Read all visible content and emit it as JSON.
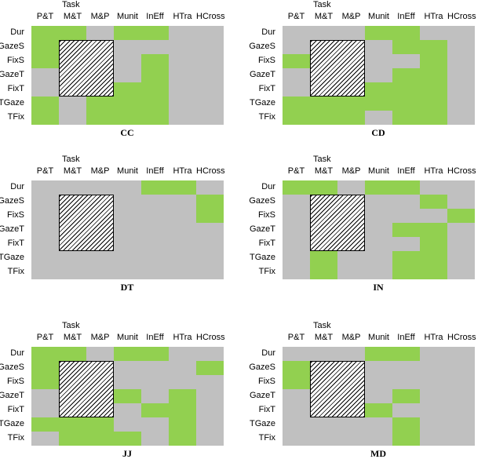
{
  "colors": {
    "on": "#92d050",
    "off": "#c0c0c0"
  },
  "axis_title": "Task",
  "columns": [
    "P&T",
    "M&T",
    "M&P",
    "Munit",
    "InEff",
    "HTra",
    "HCross"
  ],
  "rows": [
    "Dur",
    "GazeS",
    "FixS",
    "GazeT",
    "FixT",
    "TGaze",
    "TFix"
  ],
  "hatched_block": {
    "rows": [
      1,
      4
    ],
    "cols": [
      1,
      2
    ]
  },
  "panels": [
    {
      "title": "CC",
      "grid": [
        [
          1,
          1,
          0,
          1,
          1,
          0,
          0
        ],
        [
          1,
          0,
          0,
          0,
          0,
          0,
          0
        ],
        [
          1,
          0,
          0,
          0,
          1,
          0,
          0
        ],
        [
          0,
          0,
          0,
          0,
          1,
          0,
          0
        ],
        [
          0,
          0,
          0,
          1,
          1,
          0,
          0
        ],
        [
          1,
          0,
          1,
          1,
          1,
          0,
          0
        ],
        [
          1,
          0,
          1,
          1,
          1,
          0,
          0
        ]
      ]
    },
    {
      "title": "CD",
      "grid": [
        [
          0,
          0,
          0,
          1,
          1,
          0,
          0
        ],
        [
          0,
          0,
          0,
          0,
          1,
          1,
          0
        ],
        [
          1,
          0,
          0,
          0,
          0,
          1,
          0
        ],
        [
          0,
          0,
          0,
          0,
          1,
          1,
          0
        ],
        [
          0,
          0,
          0,
          1,
          1,
          1,
          0
        ],
        [
          1,
          1,
          1,
          1,
          1,
          1,
          0
        ],
        [
          1,
          1,
          1,
          0,
          1,
          1,
          0
        ]
      ]
    },
    {
      "title": "DT",
      "grid": [
        [
          0,
          0,
          0,
          0,
          1,
          1,
          0
        ],
        [
          0,
          0,
          0,
          0,
          0,
          0,
          1
        ],
        [
          0,
          0,
          0,
          0,
          0,
          0,
          1
        ],
        [
          0,
          0,
          0,
          0,
          0,
          0,
          0
        ],
        [
          0,
          0,
          0,
          0,
          0,
          0,
          0
        ],
        [
          0,
          0,
          0,
          0,
          0,
          0,
          0
        ],
        [
          0,
          0,
          0,
          0,
          0,
          0,
          0
        ]
      ]
    },
    {
      "title": "IN",
      "grid": [
        [
          1,
          1,
          0,
          1,
          1,
          0,
          0
        ],
        [
          0,
          0,
          0,
          0,
          0,
          1,
          0
        ],
        [
          0,
          0,
          0,
          0,
          0,
          0,
          1
        ],
        [
          0,
          0,
          0,
          0,
          1,
          1,
          0
        ],
        [
          0,
          0,
          0,
          0,
          0,
          1,
          0
        ],
        [
          0,
          1,
          0,
          0,
          1,
          1,
          0
        ],
        [
          0,
          1,
          0,
          0,
          1,
          1,
          0
        ]
      ]
    },
    {
      "title": "JJ",
      "grid": [
        [
          1,
          1,
          0,
          1,
          1,
          0,
          0
        ],
        [
          1,
          0,
          0,
          0,
          0,
          0,
          1
        ],
        [
          1,
          0,
          0,
          0,
          0,
          0,
          0
        ],
        [
          0,
          0,
          0,
          1,
          0,
          1,
          0
        ],
        [
          0,
          0,
          0,
          0,
          1,
          1,
          0
        ],
        [
          1,
          1,
          1,
          0,
          0,
          1,
          0
        ],
        [
          0,
          1,
          1,
          1,
          0,
          1,
          0
        ]
      ]
    },
    {
      "title": "MD",
      "grid": [
        [
          0,
          0,
          0,
          1,
          1,
          0,
          0
        ],
        [
          1,
          0,
          0,
          0,
          0,
          0,
          0
        ],
        [
          1,
          0,
          0,
          0,
          0,
          0,
          0
        ],
        [
          0,
          0,
          0,
          0,
          1,
          0,
          0
        ],
        [
          0,
          0,
          0,
          1,
          0,
          0,
          0
        ],
        [
          0,
          0,
          0,
          0,
          1,
          0,
          0
        ],
        [
          0,
          0,
          0,
          0,
          1,
          0,
          0
        ]
      ]
    }
  ]
}
